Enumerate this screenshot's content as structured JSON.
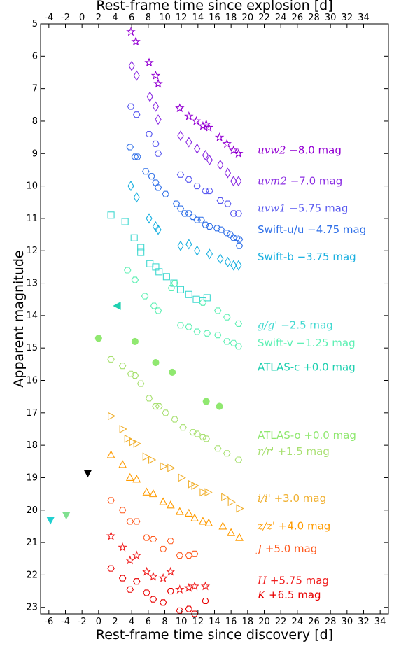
{
  "chart_data": {
    "type": "scatter",
    "xlabel": "Rest-frame time since discovery [d]",
    "x2label": "Rest-frame time since explosion [d]",
    "ylabel": "Apparent magnitude",
    "xlim": [
      -7,
      35
    ],
    "ylim": [
      23.2,
      5
    ],
    "y_inverted": true,
    "explosion_offset_days": 2,
    "x_ticks": [
      "-6",
      "-4",
      "-2",
      "0",
      "2",
      "4",
      "6",
      "8",
      "10",
      "12",
      "14",
      "16",
      "18",
      "20",
      "22",
      "24",
      "26",
      "28",
      "30",
      "32",
      "34"
    ],
    "x2_ticks": [
      "-4",
      "-2",
      "0",
      "2",
      "4",
      "6",
      "8",
      "10",
      "12",
      "14",
      "16",
      "18",
      "20",
      "22",
      "24",
      "26",
      "28",
      "30",
      "32",
      "34"
    ],
    "y_ticks": [
      "5",
      "6",
      "7",
      "8",
      "9",
      "10",
      "11",
      "12",
      "13",
      "14",
      "15",
      "16",
      "17",
      "18",
      "19",
      "20",
      "21",
      "22",
      "23"
    ],
    "grid": false,
    "series": [
      {
        "label": {
          "math": "uvw2",
          "text": " −8.0 mag",
          "math_italic": true
        },
        "color": "#9400d3",
        "marker": "star",
        "filled": false,
        "label_y": 9.0,
        "points": [
          [
            3.9,
            5.25
          ],
          [
            4.5,
            5.55
          ],
          [
            6.1,
            6.2
          ],
          [
            6.9,
            6.6
          ],
          [
            7.2,
            6.85
          ],
          [
            9.8,
            7.6
          ],
          [
            10.9,
            7.85
          ],
          [
            11.8,
            8.0
          ],
          [
            12.6,
            8.15
          ],
          [
            13.0,
            8.1
          ],
          [
            13.3,
            8.2
          ],
          [
            14.6,
            8.5
          ],
          [
            15.5,
            8.7
          ],
          [
            16.3,
            8.9
          ],
          [
            16.9,
            9.0
          ]
        ]
      },
      {
        "label": {
          "math": "uvm2",
          "text": " −7.0 mag",
          "math_italic": true
        },
        "color": "#8a2be2",
        "marker": "diamond",
        "filled": false,
        "label_y": 9.95,
        "points": [
          [
            4.0,
            6.3
          ],
          [
            4.6,
            6.6
          ],
          [
            6.2,
            7.25
          ],
          [
            6.9,
            7.55
          ],
          [
            7.2,
            7.95
          ],
          [
            9.9,
            8.45
          ],
          [
            10.9,
            8.65
          ],
          [
            11.9,
            8.85
          ],
          [
            12.9,
            9.05
          ],
          [
            13.4,
            9.2
          ],
          [
            14.7,
            9.35
          ],
          [
            15.6,
            9.6
          ],
          [
            16.3,
            9.85
          ],
          [
            16.9,
            9.85
          ]
        ]
      },
      {
        "label": {
          "math": "uvw1",
          "text": " −5.75 mag",
          "math_italic": true
        },
        "color": "#5b5bf0",
        "marker": "hexagon",
        "filled": false,
        "label_y": 10.8,
        "points": [
          [
            3.9,
            7.55
          ],
          [
            4.6,
            7.8
          ],
          [
            6.1,
            8.4
          ],
          [
            6.9,
            8.7
          ],
          [
            7.2,
            9.0
          ],
          [
            9.9,
            9.65
          ],
          [
            10.9,
            9.8
          ],
          [
            11.9,
            10.0
          ],
          [
            12.9,
            10.15
          ],
          [
            13.4,
            10.15
          ],
          [
            14.7,
            10.45
          ],
          [
            15.6,
            10.55
          ],
          [
            16.3,
            10.85
          ],
          [
            16.9,
            10.85
          ]
        ]
      },
      {
        "label": {
          "math": "Swift-u/u",
          "text": " −4.75 mag",
          "math_italic": false
        },
        "color": "#3070e8",
        "marker": "hexagon",
        "filled": false,
        "label_y": 11.45,
        "points": [
          [
            3.8,
            8.8
          ],
          [
            4.4,
            9.1
          ],
          [
            4.7,
            9.1
          ],
          [
            5.7,
            9.55
          ],
          [
            6.4,
            9.7
          ],
          [
            6.9,
            9.9
          ],
          [
            7.2,
            10.05
          ],
          [
            8.1,
            10.25
          ],
          [
            9.4,
            10.55
          ],
          [
            9.9,
            10.7
          ],
          [
            10.4,
            10.85
          ],
          [
            10.9,
            10.85
          ],
          [
            11.4,
            10.95
          ],
          [
            11.9,
            11.05
          ],
          [
            12.4,
            11.05
          ],
          [
            12.9,
            11.2
          ],
          [
            13.4,
            11.25
          ],
          [
            14.3,
            11.3
          ],
          [
            14.8,
            11.35
          ],
          [
            15.5,
            11.45
          ],
          [
            15.9,
            11.5
          ],
          [
            16.3,
            11.6
          ],
          [
            16.7,
            11.6
          ],
          [
            17.0,
            11.65
          ],
          [
            17.0,
            11.85
          ]
        ]
      },
      {
        "label": {
          "math": "Swift-b",
          "text": " −3.75 mag",
          "math_italic": false
        },
        "color": "#1ab0e0",
        "marker": "diamond",
        "filled": false,
        "label_y": 12.3,
        "points": [
          [
            3.9,
            10.0
          ],
          [
            4.6,
            10.35
          ],
          [
            6.1,
            11.0
          ],
          [
            6.9,
            11.25
          ],
          [
            7.2,
            11.35
          ],
          [
            9.9,
            11.85
          ],
          [
            10.9,
            11.8
          ],
          [
            11.9,
            12.0
          ],
          [
            13.4,
            12.1
          ],
          [
            14.7,
            12.25
          ],
          [
            15.6,
            12.35
          ],
          [
            16.3,
            12.45
          ],
          [
            16.9,
            12.45
          ]
        ]
      },
      {
        "label": {
          "math": "g/g'",
          "text": " −2.5 mag",
          "math_italic": true
        },
        "color": "#40d8d0",
        "marker": "square",
        "filled": false,
        "label_y": 14.4,
        "points": [
          [
            1.5,
            10.9
          ],
          [
            3.2,
            11.1
          ],
          [
            4.3,
            11.6
          ],
          [
            5.1,
            11.9
          ],
          [
            5.1,
            12.05
          ],
          [
            6.2,
            12.4
          ],
          [
            6.9,
            12.5
          ],
          [
            7.3,
            12.65
          ],
          [
            8.2,
            12.8
          ],
          [
            9.1,
            13.0
          ],
          [
            9.9,
            13.2
          ],
          [
            10.9,
            13.35
          ],
          [
            11.8,
            13.5
          ],
          [
            12.6,
            13.55
          ],
          [
            13.1,
            13.45
          ]
        ]
      },
      {
        "label": {
          "math": "Swift-v",
          "text": " −1.25 mag",
          "math_italic": false
        },
        "color": "#5ef0b4",
        "marker": "hexagon",
        "filled": false,
        "label_y": 14.95,
        "points": [
          [
            3.5,
            12.6
          ],
          [
            4.4,
            12.9
          ],
          [
            5.6,
            13.4
          ],
          [
            6.7,
            13.7
          ],
          [
            7.2,
            13.85
          ],
          [
            9.9,
            14.3
          ],
          [
            10.9,
            14.35
          ],
          [
            11.9,
            14.5
          ],
          [
            13.1,
            14.55
          ],
          [
            14.4,
            14.6
          ],
          [
            15.5,
            14.8
          ],
          [
            16.3,
            14.85
          ],
          [
            16.9,
            14.95
          ],
          [
            8.8,
            13.15
          ],
          [
            9.2,
            13.0
          ],
          [
            12.6,
            13.6
          ],
          [
            14.4,
            13.85
          ],
          [
            15.5,
            14.05
          ],
          [
            16.9,
            14.25
          ]
        ]
      },
      {
        "label": {
          "math": "ATLAS-c",
          "text": " +0.0 mag",
          "math_italic": false
        },
        "color": "#20d0b0",
        "marker": "triangle-left",
        "filled": true,
        "label_y": 15.7,
        "points": [
          [
            2.3,
            13.7
          ]
        ]
      },
      {
        "label": {
          "math": "ATLAS-o",
          "text": " +0.0 mag",
          "math_italic": false
        },
        "color": "#90e870",
        "marker": "circle",
        "filled": true,
        "label_y": 17.8,
        "points": [
          [
            0.0,
            14.7
          ],
          [
            4.4,
            14.8
          ],
          [
            6.9,
            15.45
          ],
          [
            8.9,
            15.75
          ],
          [
            13.0,
            16.65
          ],
          [
            14.6,
            16.8
          ]
        ]
      },
      {
        "label": {
          "math": "r/r'",
          "text": " +1.5 mag",
          "math_italic": true
        },
        "color": "#a8e070",
        "marker": "hexagon",
        "filled": false,
        "label_y": 18.3,
        "points": [
          [
            1.5,
            15.35
          ],
          [
            2.9,
            15.55
          ],
          [
            3.9,
            15.8
          ],
          [
            4.4,
            15.85
          ],
          [
            5.1,
            16.1
          ],
          [
            6.1,
            16.55
          ],
          [
            6.9,
            16.8
          ],
          [
            7.3,
            16.8
          ],
          [
            8.1,
            17.0
          ],
          [
            9.2,
            17.2
          ],
          [
            10.2,
            17.45
          ],
          [
            11.4,
            17.6
          ],
          [
            11.9,
            17.65
          ],
          [
            12.6,
            17.75
          ],
          [
            13.0,
            17.8
          ],
          [
            14.4,
            18.1
          ],
          [
            15.5,
            18.25
          ],
          [
            16.9,
            18.45
          ]
        ]
      },
      {
        "label": {
          "math": "i/i'",
          "text": " +3.0 mag",
          "math_italic": true
        },
        "color": "#f0b030",
        "marker": "triangle-right",
        "filled": false,
        "label_y": 19.75,
        "points": [
          [
            1.5,
            17.1
          ],
          [
            2.9,
            17.5
          ],
          [
            3.5,
            17.8
          ],
          [
            4.1,
            17.9
          ],
          [
            4.6,
            17.95
          ],
          [
            5.7,
            18.35
          ],
          [
            6.4,
            18.45
          ],
          [
            7.8,
            18.65
          ],
          [
            8.7,
            18.7
          ],
          [
            10.0,
            19.0
          ],
          [
            11.2,
            19.2
          ],
          [
            11.6,
            19.25
          ],
          [
            12.6,
            19.45
          ],
          [
            13.2,
            19.45
          ],
          [
            15.2,
            19.6
          ],
          [
            16.0,
            19.75
          ],
          [
            17.0,
            19.95
          ]
        ]
      },
      {
        "label": {
          "math": "z/z'",
          "text": " +4.0 mag",
          "math_italic": true
        },
        "color": "#ff9b00",
        "marker": "triangle-up",
        "filled": false,
        "label_y": 20.6,
        "points": [
          [
            1.5,
            18.3
          ],
          [
            2.9,
            18.6
          ],
          [
            3.8,
            19.0
          ],
          [
            4.6,
            19.05
          ],
          [
            5.8,
            19.45
          ],
          [
            6.6,
            19.5
          ],
          [
            7.8,
            19.75
          ],
          [
            8.7,
            19.85
          ],
          [
            9.8,
            20.05
          ],
          [
            10.9,
            20.1
          ],
          [
            11.6,
            20.25
          ],
          [
            12.6,
            20.35
          ],
          [
            13.3,
            20.4
          ],
          [
            15.0,
            20.5
          ],
          [
            16.0,
            20.7
          ],
          [
            17.0,
            20.85
          ]
        ]
      },
      {
        "label": {
          "math": "J",
          "text": " +5.0 mag",
          "math_italic": true
        },
        "color": "#ff5a1e",
        "marker": "hexagon",
        "filled": false,
        "label_y": 21.3,
        "points": [
          [
            1.5,
            19.7
          ],
          [
            2.9,
            20.0
          ],
          [
            3.8,
            20.35
          ],
          [
            4.6,
            20.35
          ],
          [
            5.8,
            20.85
          ],
          [
            6.6,
            20.9
          ],
          [
            7.8,
            21.2
          ],
          [
            8.7,
            20.95
          ],
          [
            9.8,
            21.4
          ],
          [
            10.9,
            21.4
          ],
          [
            11.6,
            21.35
          ]
        ]
      },
      {
        "label": {
          "math": "H",
          "text": " +5.75 mag",
          "math_italic": true
        },
        "color": "#f02020",
        "marker": "star",
        "filled": false,
        "label_y": 22.28,
        "points": [
          [
            1.5,
            20.8
          ],
          [
            2.9,
            21.15
          ],
          [
            3.8,
            21.55
          ],
          [
            4.6,
            21.4
          ],
          [
            5.8,
            21.9
          ],
          [
            6.6,
            22.05
          ],
          [
            7.8,
            22.1
          ],
          [
            8.7,
            21.9
          ],
          [
            9.8,
            22.45
          ],
          [
            10.9,
            22.4
          ],
          [
            11.6,
            22.35
          ],
          [
            12.9,
            22.35
          ]
        ]
      },
      {
        "label": {
          "math": "K",
          "text": " +6.5 mag",
          "math_italic": true
        },
        "color": "#e80000",
        "marker": "hexagon",
        "filled": false,
        "label_y": 22.73,
        "points": [
          [
            1.5,
            21.8
          ],
          [
            2.9,
            22.1
          ],
          [
            3.8,
            22.45
          ],
          [
            4.6,
            22.2
          ],
          [
            5.8,
            22.55
          ],
          [
            6.6,
            22.75
          ],
          [
            7.8,
            22.85
          ],
          [
            8.7,
            22.5
          ],
          [
            9.8,
            23.1
          ],
          [
            10.9,
            23.05
          ],
          [
            11.6,
            23.2
          ],
          [
            12.9,
            22.8
          ]
        ]
      },
      {
        "label": null,
        "color": "#000000",
        "marker": "triangle-down",
        "filled": true,
        "points": [
          [
            -1.3,
            18.85
          ]
        ]
      },
      {
        "label": null,
        "color": "#20d0d0",
        "marker": "triangle-down",
        "filled": true,
        "points": [
          [
            -5.8,
            20.3
          ]
        ]
      },
      {
        "label": null,
        "color": "#80e090",
        "marker": "triangle-down",
        "filled": true,
        "points": [
          [
            -3.9,
            20.15
          ]
        ]
      }
    ],
    "label_x": 19.2
  }
}
